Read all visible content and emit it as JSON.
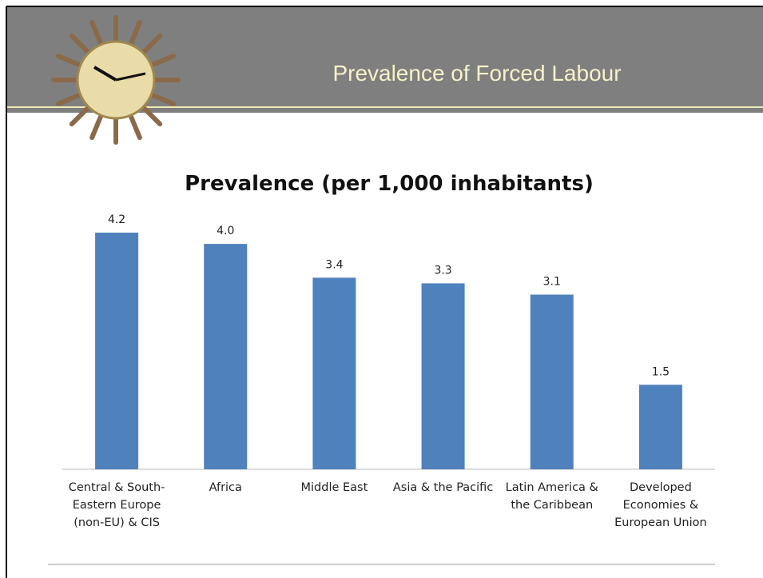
{
  "header": {
    "title": "Prevalence of Forced Labour"
  },
  "chart_data": {
    "type": "bar",
    "title": "Prevalence (per 1,000 inhabitants)",
    "categories": [
      "Central & South-Eastern Europe (non-EU) & CIS",
      "Africa",
      "Middle East",
      "Asia & the Pacific",
      "Latin America & the Caribbean",
      "Developed Economies & European Union"
    ],
    "values": [
      4.2,
      4.0,
      3.4,
      3.3,
      3.1,
      1.5
    ],
    "value_labels": [
      "4.2",
      "4.0",
      "3.4",
      "3.3",
      "3.1",
      "1.5"
    ],
    "color": "#4f81bd"
  }
}
